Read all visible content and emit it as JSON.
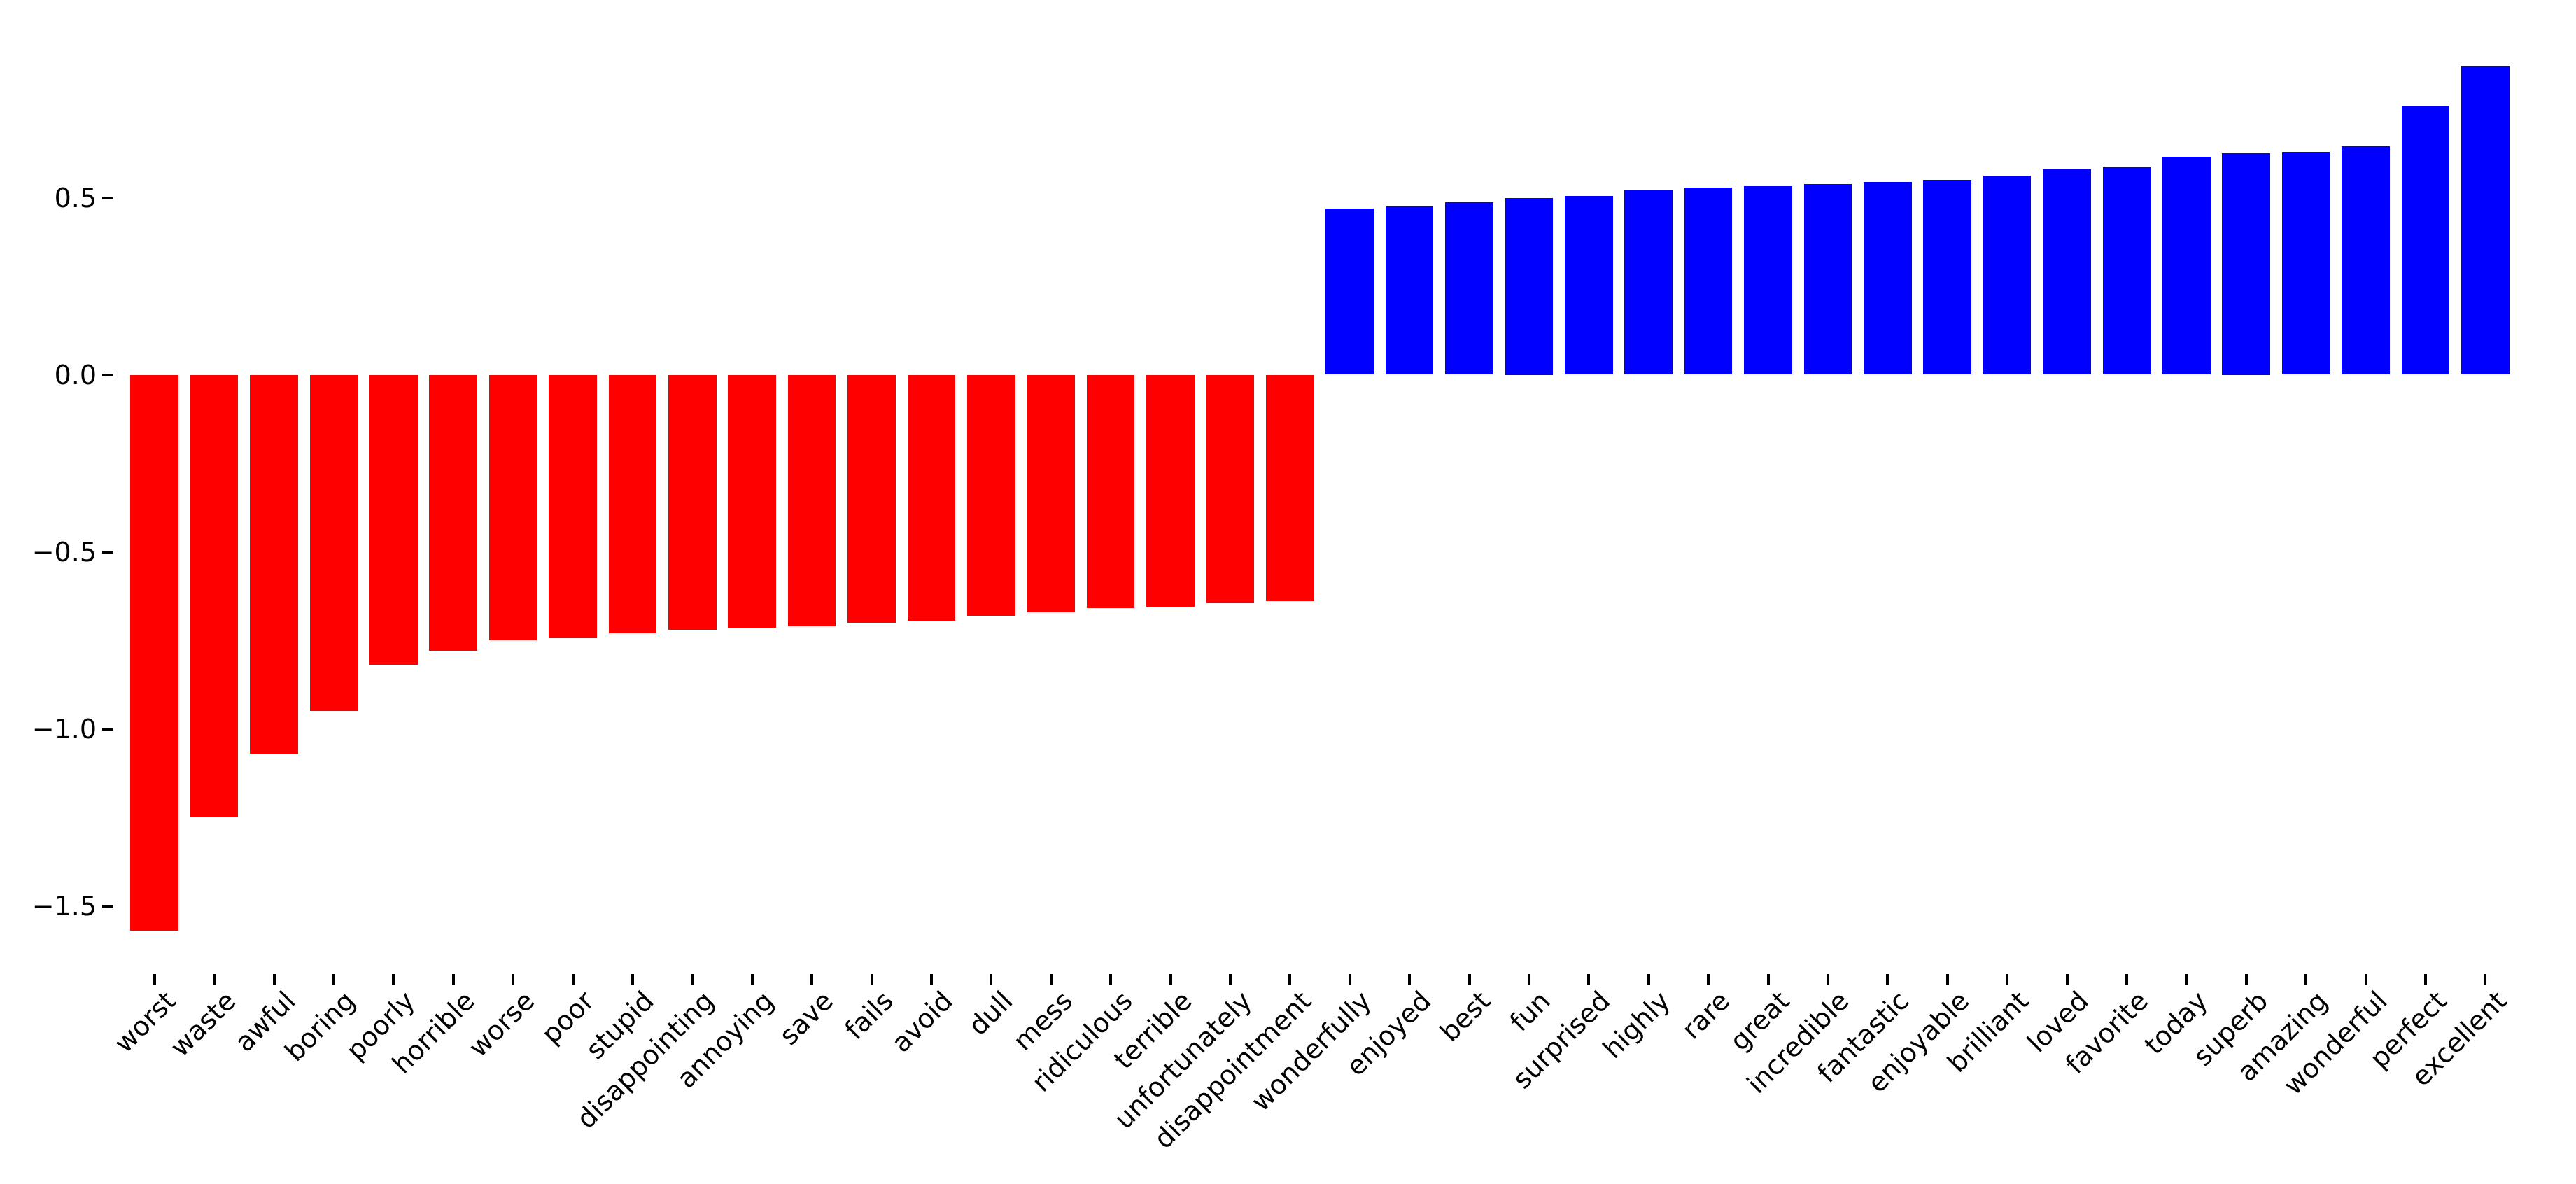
{
  "figure": {
    "background": "#ffffff"
  },
  "chart_data": {
    "type": "bar",
    "title": "",
    "xlabel": "",
    "ylabel": "",
    "grid": false,
    "legend": "none",
    "x_tick_label_rotation_deg": 45,
    "ylim": [
      -1.69,
      0.99
    ],
    "yticks": {
      "values": [
        0.5,
        0.0,
        -0.5,
        -1.0,
        -1.5
      ],
      "labels": [
        "0.5",
        "0.0",
        "−0.5",
        "−1.0",
        "−1.5"
      ]
    },
    "colors": {
      "negative_bar": "#ff0000",
      "positive_bar": "#0000ff",
      "tick": "#000000",
      "label_text": "#000000"
    },
    "categories": [
      "worst",
      "waste",
      "awful",
      "boring",
      "poorly",
      "horrible",
      "worse",
      "poor",
      "stupid",
      "disappointing",
      "annoying",
      "save",
      "fails",
      "avoid",
      "dull",
      "mess",
      "ridiculous",
      "terrible",
      "unfortunately",
      "disappointment",
      "wonderfully",
      "enjoyed",
      "best",
      "fun",
      "surprised",
      "highly",
      "rare",
      "great",
      "incredible",
      "fantastic",
      "enjoyable",
      "brilliant",
      "loved",
      "favorite",
      "today",
      "superb",
      "amazing",
      "wonderful",
      "perfect",
      "excellent"
    ],
    "values": [
      -1.57,
      -1.25,
      -1.07,
      -0.95,
      -0.82,
      -0.78,
      -0.75,
      -0.745,
      -0.73,
      -0.72,
      -0.715,
      -0.71,
      -0.7,
      -0.695,
      -0.68,
      -0.67,
      -0.66,
      -0.655,
      -0.645,
      -0.64,
      0.47,
      0.475,
      0.487,
      0.5,
      0.505,
      0.52,
      0.528,
      0.532,
      0.538,
      0.545,
      0.55,
      0.562,
      0.58,
      0.586,
      0.615,
      0.625,
      0.63,
      0.645,
      0.76,
      0.87
    ]
  }
}
